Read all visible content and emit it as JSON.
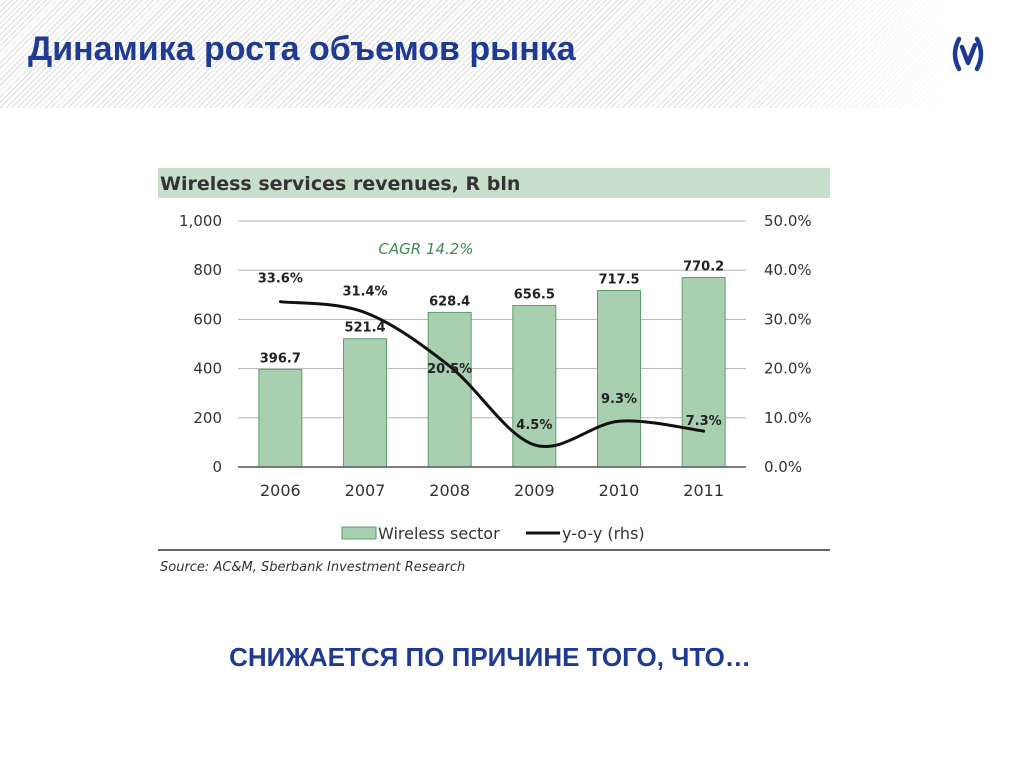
{
  "slide": {
    "title": "Динамика роста объемов рынка",
    "conclusion": "СНИЖАЕТСЯ ПО ПРИЧИНЕ ТОГО, ЧТО…",
    "logo_icon": "sberbank-bracket-logo-icon"
  },
  "colors": {
    "title": "#1f3a93",
    "bar_fill": "#a8cfb0",
    "bar_stroke": "#5f9e6c",
    "chart_title_band": "#c7dfcb",
    "cagr_text": "#3e8b55",
    "line": "#111111"
  },
  "chart_data": {
    "type": "bar",
    "title": "Wireless services revenues, R bln",
    "annotation": "CAGR 14.2%",
    "source": "Source: AC&M, Sberbank Investment Research",
    "categories": [
      "2006",
      "2007",
      "2008",
      "2009",
      "2010",
      "2011"
    ],
    "series": [
      {
        "name": "Wireless sector",
        "type": "bar",
        "axis": "left",
        "values": [
          396.7,
          521.4,
          628.4,
          656.5,
          717.5,
          770.2
        ],
        "labels": [
          "396.7",
          "521.4",
          "628.4",
          "656.5",
          "717.5",
          "770.2"
        ]
      },
      {
        "name": "y-o-y (rhs)",
        "type": "line",
        "axis": "right",
        "values": [
          33.6,
          31.4,
          20.5,
          4.5,
          9.3,
          7.3
        ],
        "labels": [
          "33.6%",
          "31.4%",
          "20.5%",
          "4.5%",
          "9.3%",
          "7.3%"
        ]
      }
    ],
    "y_left": {
      "ylim": [
        0,
        1000
      ],
      "ticks": [
        "0",
        "200",
        "400",
        "600",
        "800",
        "1,000"
      ]
    },
    "y_right": {
      "ylim": [
        0,
        50
      ],
      "ticks": [
        "0.0%",
        "10.0%",
        "20.0%",
        "30.0%",
        "40.0%",
        "50.0%"
      ]
    },
    "grid": true,
    "legend_position": "bottom"
  }
}
